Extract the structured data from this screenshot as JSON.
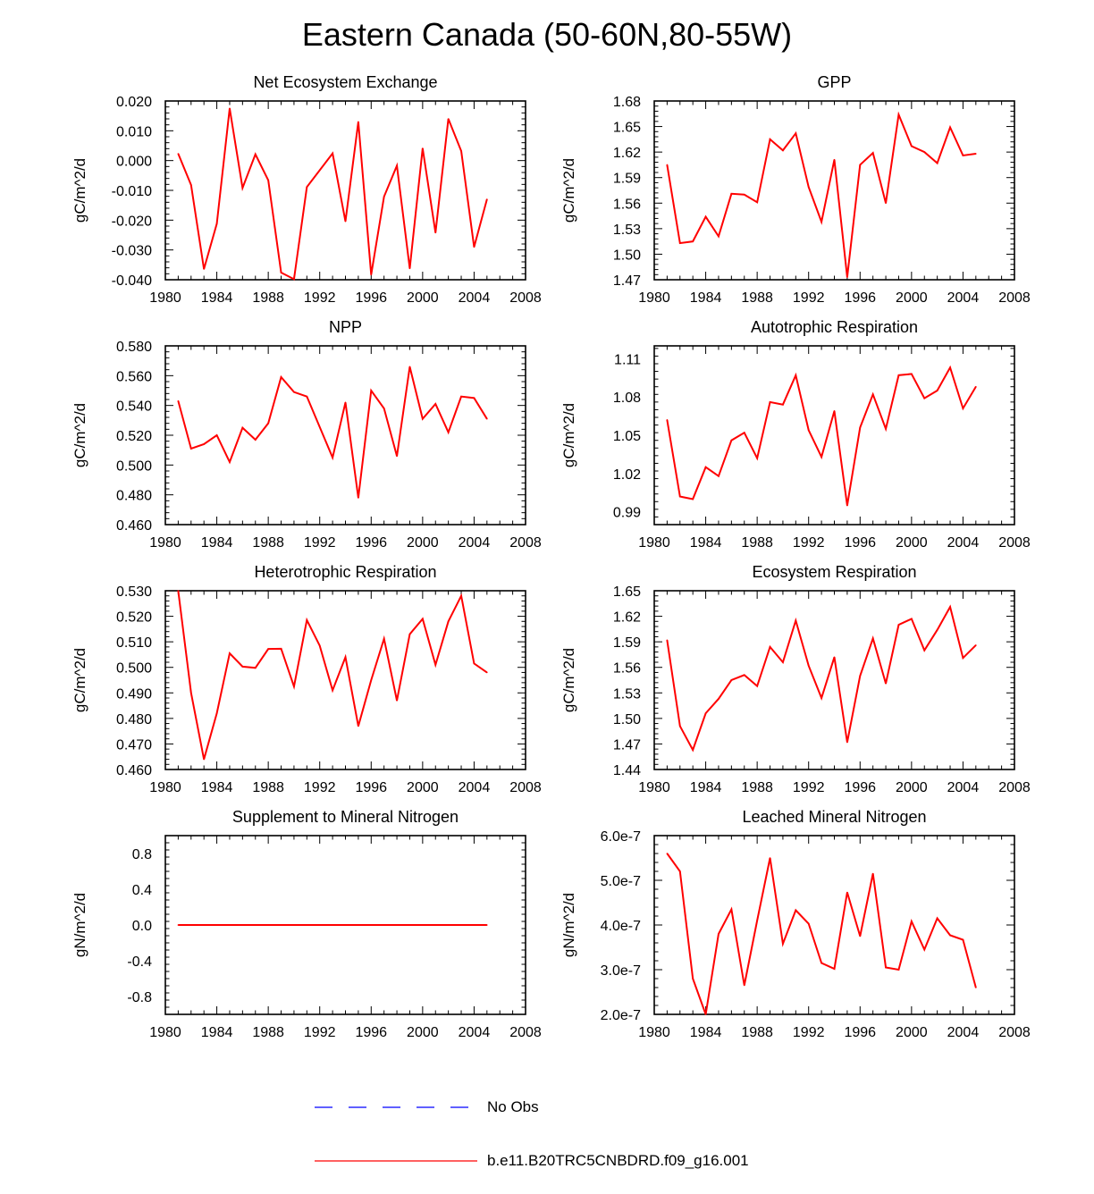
{
  "title": "Eastern Canada (50-60N,80-55W)",
  "colors": {
    "model": "#ff0000",
    "obs": "#0000ff",
    "axis": "#000000"
  },
  "legend": {
    "obs_label": "No Obs",
    "model_label": "b.e11.B20TRC5CNBDRD.f09_g16.001"
  },
  "chart_data": [
    {
      "type": "line",
      "title": "Net Ecosystem Exchange",
      "ylabel": "gC/m^2/d",
      "xlim": [
        1980,
        2008
      ],
      "xticks": [
        "1980",
        "1984",
        "1988",
        "1992",
        "1996",
        "2000",
        "2004",
        "2008"
      ],
      "ylim": [
        -0.04,
        0.02
      ],
      "yticks": [
        "0.020",
        "0.010",
        "0.000",
        "-0.010",
        "-0.020",
        "-0.030",
        "-0.040"
      ],
      "ytick_values": [
        0.02,
        0.01,
        0.0,
        -0.01,
        -0.02,
        -0.03,
        -0.04
      ],
      "x": [
        1981,
        1982,
        1983,
        1984,
        1985,
        1986,
        1987,
        1988,
        1989,
        1990,
        1991,
        1993,
        1994,
        1995,
        1996,
        1997,
        1998,
        1999,
        2000,
        2001,
        2002,
        2003,
        2004,
        2005
      ],
      "values": [
        0.0023,
        -0.0082,
        -0.0364,
        -0.0212,
        0.0175,
        -0.0092,
        0.0021,
        -0.0066,
        -0.0376,
        -0.0398,
        -0.0089,
        0.0024,
        -0.0204,
        0.013,
        -0.0383,
        -0.0121,
        -0.0017,
        -0.0362,
        0.0041,
        -0.0242,
        0.014,
        0.0032,
        -0.029,
        -0.013
      ],
      "series_name": "b.e11.B20TRC5CNBDRD.f09_g16.001"
    },
    {
      "type": "line",
      "title": "GPP",
      "ylabel": "gC/m^2/d",
      "xlim": [
        1980,
        2008
      ],
      "xticks": [
        "1980",
        "1984",
        "1988",
        "1992",
        "1996",
        "2000",
        "2004",
        "2008"
      ],
      "ylim": [
        1.47,
        1.68
      ],
      "yticks": [
        "1.68",
        "1.65",
        "1.62",
        "1.59",
        "1.56",
        "1.53",
        "1.50",
        "1.47"
      ],
      "ytick_values": [
        1.68,
        1.65,
        1.62,
        1.59,
        1.56,
        1.53,
        1.5,
        1.47
      ],
      "x": [
        1981,
        1982,
        1983,
        1984,
        1985,
        1986,
        1987,
        1988,
        1989,
        1990,
        1991,
        1992,
        1993,
        1994,
        1995,
        1996,
        1997,
        1998,
        1999,
        2000,
        2001,
        2002,
        2003,
        2004,
        2005
      ],
      "values": [
        1.605,
        1.513,
        1.515,
        1.544,
        1.521,
        1.571,
        1.57,
        1.561,
        1.635,
        1.622,
        1.642,
        1.579,
        1.538,
        1.611,
        1.473,
        1.605,
        1.619,
        1.56,
        1.664,
        1.627,
        1.62,
        1.607,
        1.649,
        1.616,
        1.618
      ],
      "series_name": "b.e11.B20TRC5CNBDRD.f09_g16.001"
    },
    {
      "type": "line",
      "title": "NPP",
      "ylabel": "gC/m^2/d",
      "xlim": [
        1980,
        2008
      ],
      "xticks": [
        "1980",
        "1984",
        "1988",
        "1992",
        "1996",
        "2000",
        "2004",
        "2008"
      ],
      "ylim": [
        0.46,
        0.58
      ],
      "yticks": [
        "0.580",
        "0.560",
        "0.540",
        "0.520",
        "0.500",
        "0.480",
        "0.460"
      ],
      "ytick_values": [
        0.58,
        0.56,
        0.54,
        0.52,
        0.5,
        0.48,
        0.46
      ],
      "x": [
        1981,
        1982,
        1983,
        1984,
        1985,
        1986,
        1987,
        1988,
        1989,
        1990,
        1991,
        1993,
        1994,
        1995,
        1996,
        1997,
        1998,
        1999,
        2000,
        2001,
        2002,
        2003,
        2004,
        2005
      ],
      "values": [
        0.543,
        0.511,
        0.514,
        0.52,
        0.502,
        0.525,
        0.517,
        0.528,
        0.559,
        0.549,
        0.546,
        0.505,
        0.542,
        0.478,
        0.55,
        0.538,
        0.506,
        0.566,
        0.531,
        0.541,
        0.522,
        0.546,
        0.545,
        0.531
      ],
      "series_name": "b.e11.B20TRC5CNBDRD.f09_g16.001"
    },
    {
      "type": "line",
      "title": "Autotrophic Respiration",
      "ylabel": "gC/m^2/d",
      "xlim": [
        1980,
        2008
      ],
      "xticks": [
        "1980",
        "1984",
        "1988",
        "1992",
        "1996",
        "2000",
        "2004",
        "2008"
      ],
      "ylim": [
        0.98,
        1.12
      ],
      "yticks": [
        "1.11",
        "1.08",
        "1.05",
        "1.02",
        "0.99"
      ],
      "ytick_values": [
        1.11,
        1.08,
        1.05,
        1.02,
        0.99
      ],
      "x": [
        1981,
        1982,
        1983,
        1984,
        1985,
        1986,
        1987,
        1988,
        1989,
        1990,
        1991,
        1992,
        1993,
        1994,
        1995,
        1996,
        1997,
        1998,
        1999,
        2000,
        2001,
        2002,
        2003,
        2004,
        2005
      ],
      "values": [
        1.062,
        1.002,
        1.0,
        1.025,
        1.018,
        1.046,
        1.052,
        1.032,
        1.076,
        1.074,
        1.097,
        1.054,
        1.033,
        1.069,
        0.995,
        1.056,
        1.082,
        1.055,
        1.097,
        1.098,
        1.079,
        1.085,
        1.103,
        1.071,
        1.088
      ],
      "series_name": "b.e11.B20TRC5CNBDRD.f09_g16.001"
    },
    {
      "type": "line",
      "title": "Heterotrophic Respiration",
      "ylabel": "gC/m^2/d",
      "xlim": [
        1980,
        2008
      ],
      "xticks": [
        "1980",
        "1984",
        "1988",
        "1992",
        "1996",
        "2000",
        "2004",
        "2008"
      ],
      "ylim": [
        0.46,
        0.53
      ],
      "yticks": [
        "0.530",
        "0.520",
        "0.510",
        "0.500",
        "0.490",
        "0.480",
        "0.470",
        "0.460"
      ],
      "ytick_values": [
        0.53,
        0.52,
        0.51,
        0.5,
        0.49,
        0.48,
        0.47,
        0.46
      ],
      "x": [
        1981,
        1982,
        1983,
        1984,
        1985,
        1986,
        1987,
        1988,
        1989,
        1990,
        1991,
        1992,
        1993,
        1994,
        1995,
        1996,
        1997,
        1998,
        1999,
        2000,
        2001,
        2002,
        2003,
        2004,
        2005
      ],
      "values": [
        0.53,
        0.49,
        0.464,
        0.482,
        0.5055,
        0.5003,
        0.4998,
        0.5072,
        0.5073,
        0.4925,
        0.5185,
        0.5085,
        0.491,
        0.504,
        0.477,
        0.495,
        0.5112,
        0.487,
        0.513,
        0.519,
        0.501,
        0.518,
        0.528,
        0.5015,
        0.498
      ],
      "series_name": "b.e11.B20TRC5CNBDRD.f09_g16.001"
    },
    {
      "type": "line",
      "title": "Ecosystem Respiration",
      "ylabel": "gC/m^2/d",
      "xlim": [
        1980,
        2008
      ],
      "xticks": [
        "1980",
        "1984",
        "1988",
        "1992",
        "1996",
        "2000",
        "2004",
        "2008"
      ],
      "ylim": [
        1.44,
        1.65
      ],
      "yticks": [
        "1.65",
        "1.62",
        "1.59",
        "1.56",
        "1.53",
        "1.50",
        "1.47",
        "1.44"
      ],
      "ytick_values": [
        1.65,
        1.62,
        1.59,
        1.56,
        1.53,
        1.5,
        1.47,
        1.44
      ],
      "x": [
        1981,
        1982,
        1983,
        1984,
        1985,
        1986,
        1987,
        1988,
        1989,
        1990,
        1991,
        1992,
        1993,
        1994,
        1995,
        1996,
        1997,
        1998,
        1999,
        2000,
        2001,
        2002,
        2003,
        2004,
        2005
      ],
      "values": [
        1.592,
        1.491,
        1.463,
        1.506,
        1.523,
        1.545,
        1.551,
        1.538,
        1.584,
        1.566,
        1.615,
        1.562,
        1.524,
        1.572,
        1.472,
        1.55,
        1.594,
        1.541,
        1.61,
        1.617,
        1.58,
        1.604,
        1.631,
        1.571,
        1.586
      ],
      "series_name": "b.e11.B20TRC5CNBDRD.f09_g16.001"
    },
    {
      "type": "line",
      "title": "Supplement to Mineral Nitrogen",
      "ylabel": "gN/m^2/d",
      "xlim": [
        1980,
        2008
      ],
      "xticks": [
        "1980",
        "1984",
        "1988",
        "1992",
        "1996",
        "2000",
        "2004",
        "2008"
      ],
      "ylim": [
        -1.0,
        1.0
      ],
      "yticks": [
        "0.8",
        "0.4",
        "0.0",
        "-0.4",
        "-0.8"
      ],
      "ytick_values": [
        0.8,
        0.4,
        0.0,
        -0.4,
        -0.8
      ],
      "x": [
        1981,
        1982,
        1983,
        1984,
        1985,
        1986,
        1987,
        1988,
        1989,
        1990,
        1991,
        1992,
        1993,
        1994,
        1995,
        1996,
        1997,
        1998,
        1999,
        2000,
        2001,
        2002,
        2003,
        2004,
        2005
      ],
      "values": [
        0,
        0,
        0,
        0,
        0,
        0,
        0,
        0,
        0,
        0,
        0,
        0,
        0,
        0,
        0,
        0,
        0,
        0,
        0,
        0,
        0,
        0,
        0,
        0,
        0
      ],
      "series_name": "b.e11.B20TRC5CNBDRD.f09_g16.001"
    },
    {
      "type": "line",
      "title": "Leached Mineral Nitrogen",
      "ylabel": "gN/m^2/d",
      "xlim": [
        1980,
        2008
      ],
      "xticks": [
        "1980",
        "1984",
        "1988",
        "1992",
        "1996",
        "2000",
        "2004",
        "2008"
      ],
      "ylim": [
        2e-07,
        6e-07
      ],
      "yticks": [
        "6.0e-7",
        "5.0e-7",
        "4.0e-7",
        "3.0e-7",
        "2.0e-7"
      ],
      "ytick_values": [
        6e-07,
        5e-07,
        4e-07,
        3e-07,
        2e-07
      ],
      "x": [
        1981,
        1982,
        1983,
        1984,
        1985,
        1986,
        1987,
        1988,
        1989,
        1990,
        1991,
        1992,
        1993,
        1994,
        1995,
        1996,
        1997,
        1998,
        1999,
        2000,
        2001,
        2002,
        2003,
        2004,
        2005
      ],
      "values": [
        5.6e-07,
        5.2e-07,
        2.8e-07,
        2e-07,
        3.8e-07,
        4.35e-07,
        2.65e-07,
        4.1e-07,
        5.5e-07,
        3.58e-07,
        4.33e-07,
        4.03e-07,
        3.15e-07,
        3.02e-07,
        4.73e-07,
        3.75e-07,
        5.15e-07,
        3.05e-07,
        3e-07,
        4.08e-07,
        3.45e-07,
        4.15e-07,
        3.77e-07,
        3.67e-07,
        2.6e-07
      ],
      "series_name": "b.e11.B20TRC5CNBDRD.f09_g16.001"
    }
  ]
}
